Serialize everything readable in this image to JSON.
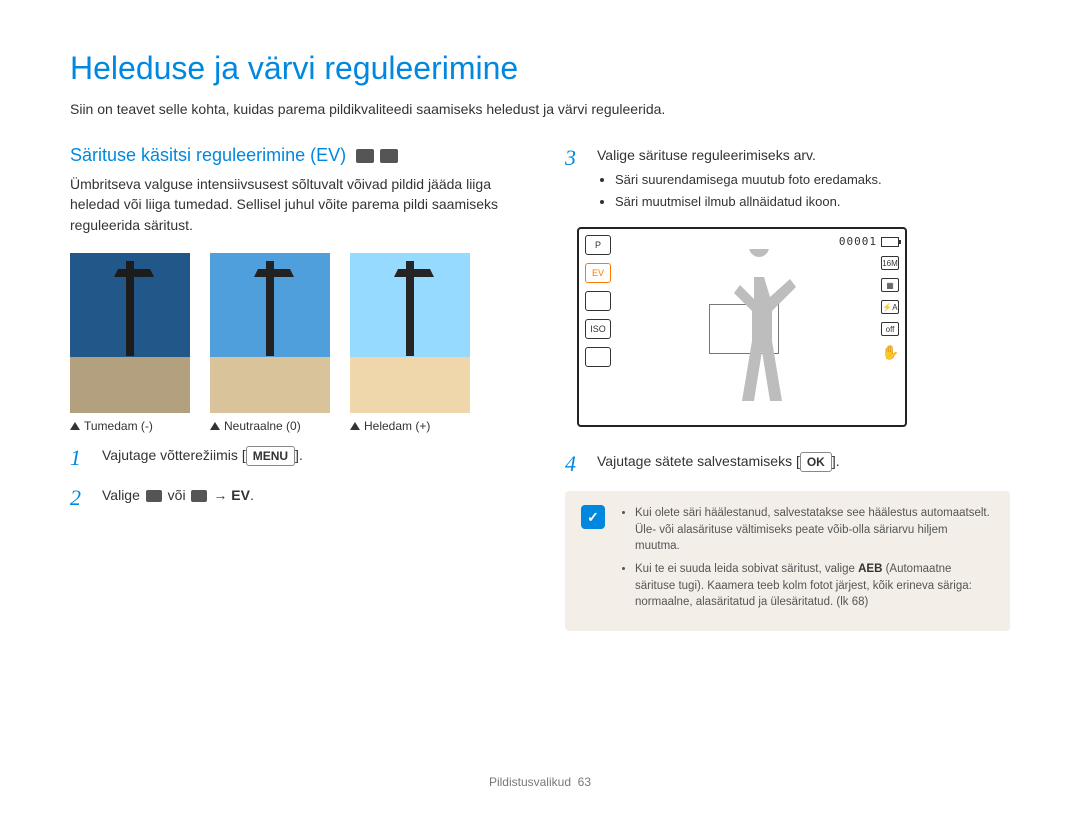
{
  "page": {
    "title": "Heleduse ja värvi reguleerimine",
    "intro": "Siin on teavet selle kohta, kuidas parema pildikvaliteedi saamiseks heledust ja värvi reguleerida.",
    "footer_section": "Pildistusvalikud",
    "footer_page": "63"
  },
  "left": {
    "heading": "Särituse käsitsi reguleerimine (EV)",
    "body": "Ümbritseva valguse intensiivsusest sõltuvalt võivad pildid jääda liiga heledad või liiga tumedad. Sellisel juhul võite parema pildi saamiseks reguleerida säritust.",
    "thumbs": [
      {
        "label": "Tumedam (-)",
        "sky": "#2a6aa8",
        "bright": 0.82
      },
      {
        "label": "Neutraalne (0)",
        "sky": "#4f9fdc",
        "bright": 1.0
      },
      {
        "label": "Heledam (+)",
        "sky": "#89c6ef",
        "bright": 1.1
      }
    ],
    "step1": {
      "num": "1",
      "text_a": "Vajutage võtterežiimis ",
      "btn": "MENU",
      "text_b": "."
    },
    "step2": {
      "num": "2",
      "text_a": "Valige ",
      "text_mid": " või ",
      "text_arrow": " → ",
      "ev": "EV",
      "text_b": "."
    }
  },
  "right": {
    "step3": {
      "num": "3",
      "title": "Valige särituse reguleerimiseks arv.",
      "bullets": [
        "Säri suurendamisega muutub foto eredamaks.",
        "Säri muutmisel ilmub allnäidatud ikoon."
      ]
    },
    "lcd": {
      "counter": "00001",
      "left_icons": [
        "P",
        "EV",
        "",
        "ISO",
        ""
      ],
      "active_index": 1,
      "right_icons": [
        "16M",
        "▦",
        "⚡A",
        "off"
      ],
      "hand": "✋"
    },
    "step4": {
      "num": "4",
      "text_a": "Vajutage sätete salvestamiseks ",
      "btn": "OK",
      "text_b": "."
    },
    "note": {
      "icon": "✓",
      "items": [
        {
          "a": "Kui olete säri häälestanud, salvestatakse see häälestus automaatselt. Üle- või alasärituse vältimiseks peate võib-olla säriarvu hiljem muutma."
        },
        {
          "a": "Kui te ei suuda leida sobivat säritust, valige ",
          "b": "AEB",
          "c": " (Automaatne särituse tugi). Kaamera teeb kolm fotot järjest, kõik erineva säriga: normaalne, alasäritatud ja ülesäritatud. (lk 68)"
        }
      ]
    }
  },
  "colors": {
    "accent": "#0088e0",
    "note_bg": "#f3efe8",
    "active": "#ff7a00"
  }
}
